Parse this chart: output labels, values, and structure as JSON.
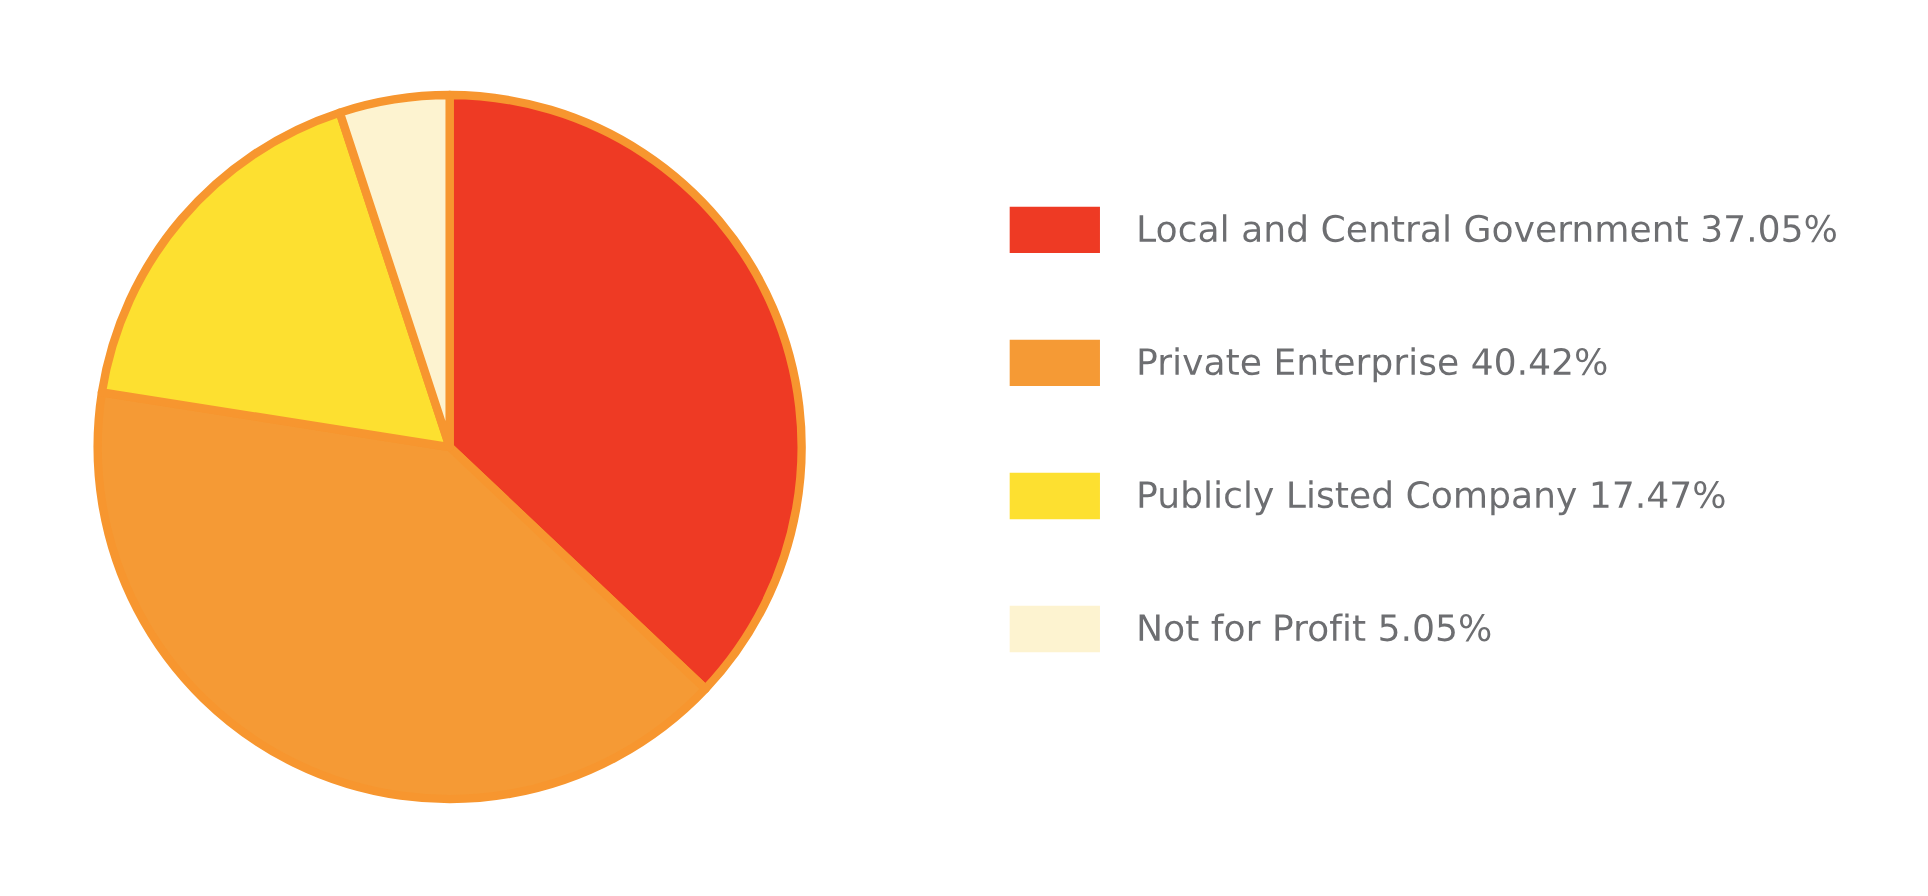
{
  "chart_data": {
    "type": "pie",
    "categories": [
      "Local and Central Government 37.05%",
      "Private Enterprise 40.42%",
      "Publicly Listed Company 17.47%",
      "Not for Profit 5.05%"
    ],
    "values": [
      37.05,
      40.42,
      17.47,
      5.05
    ],
    "colors": [
      "#ee3a24",
      "#f59a35",
      "#fde030",
      "#fdf3d0"
    ],
    "legend": "right"
  }
}
